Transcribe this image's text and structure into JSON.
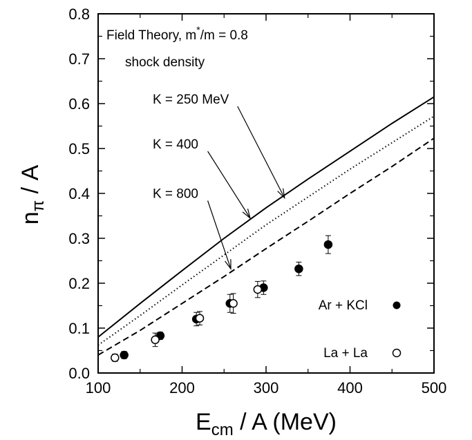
{
  "chart_data": {
    "type": "line",
    "xlim": [
      100,
      500
    ],
    "ylim": [
      0.0,
      0.8
    ],
    "x_ticks": [
      100,
      200,
      300,
      400,
      500
    ],
    "x_tick_labels": [
      "100",
      "200",
      "300",
      "400",
      "500"
    ],
    "y_ticks": [
      0.0,
      0.1,
      0.2,
      0.3,
      0.4,
      0.5,
      0.6,
      0.7,
      0.8
    ],
    "y_tick_labels": [
      "0.0",
      "0.1",
      "0.2",
      "0.3",
      "0.4",
      "0.5",
      "0.6",
      "0.7",
      "0.8"
    ],
    "xlabel": {
      "main": "E",
      "sub": "cm",
      "rest": " / A (MeV)"
    },
    "ylabel": {
      "main": "n",
      "sub": "π",
      "rest": " / A"
    },
    "grid": false,
    "annotations": {
      "line1": {
        "pre": "Field Theory,  m",
        "sup": "*",
        "post": "/m = 0.8"
      },
      "line2": "shock density"
    },
    "series": [
      {
        "name": "K = 250 MeV",
        "style": "solid",
        "x": [
          100,
          150,
          200,
          250,
          300,
          350,
          400,
          450,
          500
        ],
        "y": [
          0.08,
          0.155,
          0.228,
          0.3,
          0.368,
          0.432,
          0.494,
          0.556,
          0.615
        ]
      },
      {
        "name": "K = 400",
        "style": "dotted",
        "x": [
          100,
          150,
          200,
          250,
          300,
          350,
          400,
          450,
          500
        ],
        "y": [
          0.062,
          0.128,
          0.196,
          0.263,
          0.33,
          0.392,
          0.454,
          0.513,
          0.572
        ]
      },
      {
        "name": "K = 800",
        "style": "dashed",
        "x": [
          100,
          150,
          200,
          250,
          300,
          350,
          400,
          450,
          500
        ],
        "y": [
          0.04,
          0.095,
          0.155,
          0.215,
          0.277,
          0.338,
          0.4,
          0.46,
          0.523
        ]
      }
    ],
    "curve_labels": [
      {
        "text": "K = 250 MeV",
        "series": 0,
        "lx": 165,
        "ly": 0.6,
        "ax": 322,
        "ay": 0.39
      },
      {
        "text": "K = 400",
        "series": 1,
        "lx": 165,
        "ly": 0.5,
        "ax": 281,
        "ay": 0.345
      },
      {
        "text": "K = 800",
        "series": 2,
        "lx": 165,
        "ly": 0.39,
        "ax": 258,
        "ay": 0.232
      }
    ],
    "points": [
      {
        "name": "Ar + KCl",
        "marker": "filled-circle",
        "x": [
          131,
          174,
          217,
          257,
          297,
          339,
          374
        ],
        "y": [
          0.04,
          0.083,
          0.12,
          0.155,
          0.19,
          0.232,
          0.286
        ],
        "err": [
          0.008,
          0.008,
          0.015,
          0.02,
          0.015,
          0.015,
          0.02
        ]
      },
      {
        "name": "La + La",
        "marker": "open-circle",
        "x": [
          120,
          168,
          221,
          261,
          290
        ],
        "y": [
          0.034,
          0.074,
          0.122,
          0.155,
          0.186
        ],
        "err": [
          0.008,
          0.015,
          0.015,
          0.022,
          0.018
        ]
      }
    ],
    "legend": [
      {
        "label": "Ar + KCl",
        "marker": "filled-circle"
      },
      {
        "label": "La + La",
        "marker": "open-circle"
      }
    ],
    "legend_position": "bottom-right"
  }
}
